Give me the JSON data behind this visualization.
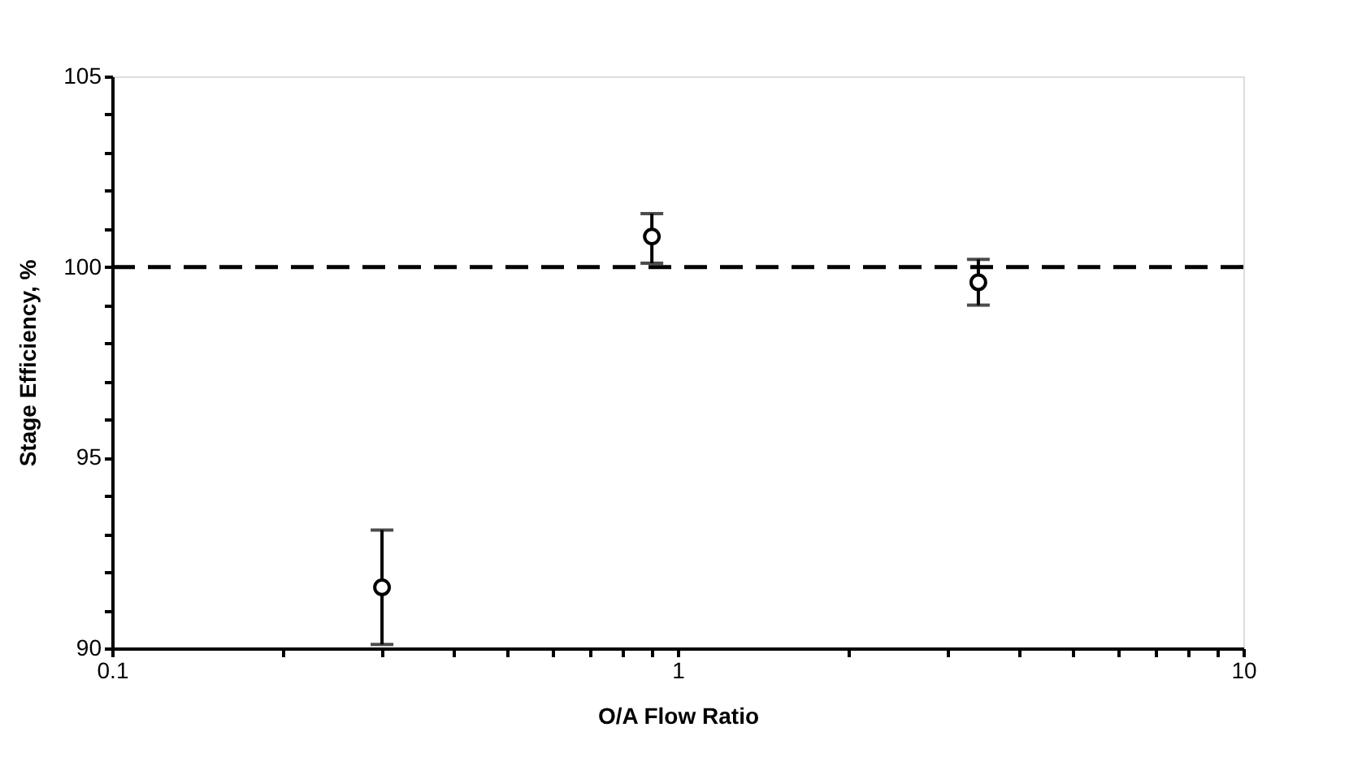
{
  "chart_data": {
    "type": "scatter",
    "xlabel": "O/A Flow Ratio",
    "ylabel": "Stage Efficiency, %",
    "x": [
      0.3,
      0.9,
      3.4
    ],
    "series": [
      {
        "color": "#000000",
        "values": [
          91.6,
          100.8,
          99.6
        ],
        "errors": [
          [
            90.1,
            93.1
          ],
          [
            100.1,
            101.4
          ],
          [
            99.0,
            100.2
          ]
        ]
      }
    ],
    "marker": "circle",
    "log": "x",
    "xlim": [
      0.1,
      10
    ],
    "ylim": [
      90,
      105
    ],
    "xticks": [
      0.1,
      {
        "value": 0.2,
        "label": null
      },
      {
        "value": 0.3,
        "label": null
      },
      {
        "value": 0.4,
        "label": null
      },
      {
        "value": 0.5,
        "label": null
      },
      {
        "value": 0.6,
        "label": null
      },
      {
        "value": 0.7,
        "label": null
      },
      {
        "value": 0.8,
        "label": null
      },
      {
        "value": 0.9,
        "label": null
      },
      1,
      {
        "value": 2,
        "label": null
      },
      {
        "value": 3,
        "label": null
      },
      {
        "value": 4,
        "label": null
      },
      {
        "value": 5,
        "label": null
      },
      {
        "value": 6,
        "label": null
      },
      {
        "value": 7,
        "label": null
      },
      {
        "value": 8,
        "label": null
      },
      {
        "value": 9,
        "label": null
      },
      10
    ],
    "yticks": [
      90,
      {
        "value": 91,
        "label": null
      },
      {
        "value": 92,
        "label": null
      },
      {
        "value": 93,
        "label": null
      },
      {
        "value": 94,
        "label": null
      },
      95,
      {
        "value": 96,
        "label": null
      },
      {
        "value": 97,
        "label": null
      },
      {
        "value": 98,
        "label": null
      },
      {
        "value": 99,
        "label": null
      },
      100,
      {
        "value": 101,
        "label": null
      },
      {
        "value": 102,
        "label": null
      },
      {
        "value": 103,
        "label": null
      },
      {
        "value": 104,
        "label": null
      },
      105
    ],
    "ref_lines": [
      {
        "axis": "y",
        "value": 100,
        "label": null,
        "color": "#000000",
        "line_style": "dashed"
      }
    ],
    "grid": false
  }
}
